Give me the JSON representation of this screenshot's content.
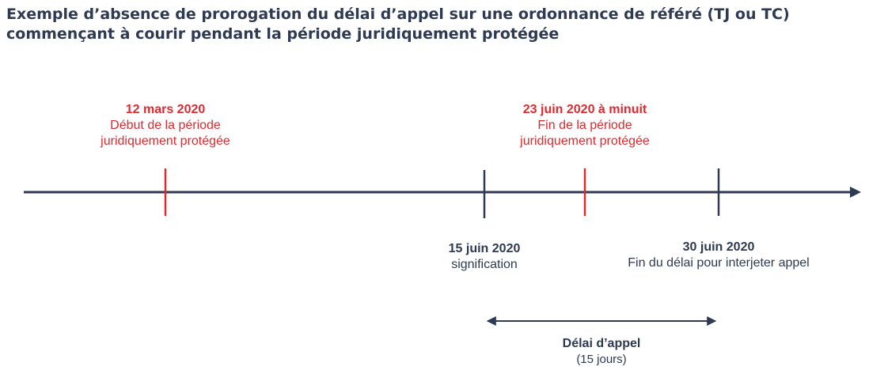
{
  "title": {
    "line1": "Exemple d’absence de prorogation du délai d’appel sur une ordonnance de référé (TJ ou TC)",
    "line2": "commençant à courir pendant la période juridiquement protégée"
  },
  "events_above": [
    {
      "date": "12 mars 2020",
      "line1": "Début de la période",
      "line2": "juridiquement protégée",
      "color": "#e0292f"
    },
    {
      "date": "23 juin 2020 à minuit",
      "line1": "Fin de la période",
      "line2": "juridiquement protégée",
      "color": "#e0292f"
    }
  ],
  "events_below": [
    {
      "date": "15 juin 2020",
      "line1": "signification",
      "color": "#2d3a52"
    },
    {
      "date": "30 juin 2020",
      "line1": "Fin du délai pour interjeter appel",
      "color": "#2d3a52"
    }
  ],
  "span": {
    "label": "Délai d’appel",
    "sublabel": "(15 jours)"
  },
  "colors": {
    "line": "#2d3a52",
    "accent": "#e0292f"
  }
}
